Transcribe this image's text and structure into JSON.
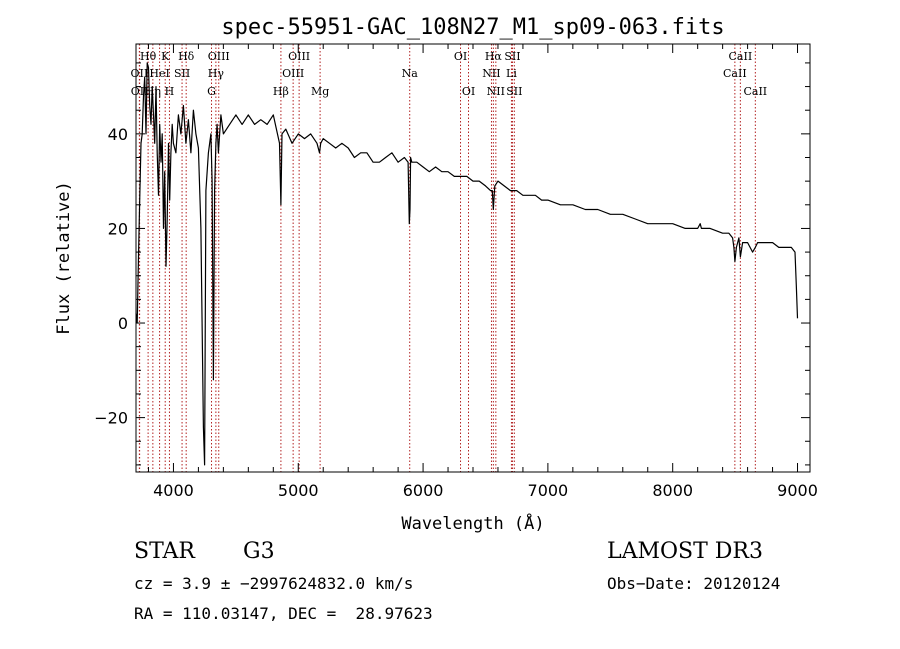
{
  "chart_data": {
    "type": "line",
    "title": "spec-55951-GAC_108N27_M1_sp09-063.fits",
    "xlabel": "Wavelength (Å)",
    "ylabel": "Flux (relative)",
    "xlim": [
      3700,
      9100
    ],
    "ylim": [
      -31.5,
      59
    ],
    "x_ticks": [
      4000,
      5000,
      6000,
      7000,
      8000,
      9000
    ],
    "y_ticks": [
      -20,
      0,
      20,
      40
    ],
    "x_tick_labels": [
      "4000",
      "5000",
      "6000",
      "7000",
      "8000",
      "9000"
    ],
    "y_tick_labels": [
      "−20",
      "0",
      "20",
      "40"
    ],
    "series": [
      {
        "name": "spectrum",
        "x": [
          3700,
          3710,
          3720,
          3730,
          3740,
          3750,
          3760,
          3770,
          3780,
          3790,
          3800,
          3810,
          3820,
          3830,
          3840,
          3850,
          3860,
          3870,
          3880,
          3890,
          3900,
          3910,
          3920,
          3930,
          3940,
          3950,
          3960,
          3970,
          3980,
          3990,
          4000,
          4020,
          4040,
          4060,
          4080,
          4100,
          4120,
          4140,
          4160,
          4180,
          4200,
          4220,
          4240,
          4250,
          4260,
          4280,
          4300,
          4310,
          4320,
          4330,
          4340,
          4350,
          4360,
          4380,
          4400,
          4450,
          4500,
          4550,
          4600,
          4650,
          4700,
          4750,
          4800,
          4850,
          4861,
          4870,
          4900,
          4950,
          5000,
          5050,
          5100,
          5150,
          5170,
          5180,
          5200,
          5250,
          5300,
          5350,
          5400,
          5450,
          5500,
          5550,
          5600,
          5650,
          5700,
          5750,
          5800,
          5850,
          5880,
          5890,
          5895,
          5900,
          5910,
          5950,
          6000,
          6050,
          6100,
          6150,
          6200,
          6250,
          6300,
          6350,
          6400,
          6450,
          6500,
          6540,
          6555,
          6563,
          6575,
          6600,
          6650,
          6700,
          6750,
          6800,
          6850,
          6900,
          6950,
          7000,
          7100,
          7200,
          7300,
          7400,
          7500,
          7600,
          7700,
          7800,
          7900,
          8000,
          8100,
          8200,
          8220,
          8230,
          8300,
          8400,
          8450,
          8480,
          8490,
          8498,
          8510,
          8530,
          8542,
          8560,
          8600,
          8640,
          8662,
          8680,
          8720,
          8760,
          8800,
          8850,
          8900,
          8950,
          8980,
          8990,
          9000
        ],
        "y": [
          2,
          0,
          14,
          26,
          38,
          40,
          48,
          52,
          40,
          55,
          54,
          46,
          42,
          50,
          44,
          38,
          50,
          36,
          27,
          42,
          34,
          40,
          20,
          32,
          12,
          22,
          38,
          26,
          36,
          42,
          38,
          36,
          44,
          40,
          46,
          38,
          43,
          36,
          45,
          40,
          37,
          20,
          -22,
          -30,
          28,
          36,
          40,
          30,
          -12,
          28,
          38,
          42,
          36,
          44,
          40,
          42,
          44,
          42,
          44,
          42,
          43,
          42,
          44,
          38,
          25,
          40,
          41,
          38,
          40,
          39,
          40,
          38,
          36,
          38,
          39,
          38,
          37,
          38,
          37,
          35,
          36,
          36,
          34,
          34,
          35,
          36,
          34,
          35,
          34,
          21,
          24,
          35,
          34,
          34,
          33,
          32,
          33,
          32,
          32,
          31,
          31,
          31,
          30,
          30,
          29,
          28,
          28,
          24,
          29,
          30,
          29,
          28,
          28,
          27,
          27,
          27,
          26,
          26,
          25,
          25,
          24,
          24,
          23,
          23,
          22,
          21,
          21,
          21,
          20,
          20,
          21,
          20,
          20,
          19,
          19,
          18,
          16,
          13,
          16,
          18,
          14,
          17,
          17,
          15,
          16,
          17,
          17,
          17,
          17,
          16,
          16,
          16,
          15,
          8,
          1
        ]
      }
    ],
    "lines": [
      {
        "name": "Hθ",
        "x": 3797,
        "row": 0
      },
      {
        "name": "OII",
        "x": 3727,
        "row": 1
      },
      {
        "name": "OII",
        "x": 3729,
        "row": 2
      },
      {
        "name": "Hη",
        "x": 3835,
        "row": 2
      },
      {
        "name": "HeI",
        "x": 3889,
        "row": 1
      },
      {
        "name": "K",
        "x": 3934,
        "row": 0
      },
      {
        "name": "H",
        "x": 3968,
        "row": 2
      },
      {
        "name": "SII",
        "x": 4069,
        "row": 1
      },
      {
        "name": "Hδ",
        "x": 4102,
        "row": 0
      },
      {
        "name": "Hγ",
        "x": 4340,
        "row": 1
      },
      {
        "name": "G",
        "x": 4305,
        "row": 2
      },
      {
        "name": "OIII",
        "x": 4363,
        "row": 0
      },
      {
        "name": "Hβ",
        "x": 4861,
        "row": 2
      },
      {
        "name": "OIII",
        "x": 4959,
        "row": 1
      },
      {
        "name": "OIII",
        "x": 5007,
        "row": 0
      },
      {
        "name": "Mg",
        "x": 5175,
        "row": 2
      },
      {
        "name": "Na",
        "x": 5893,
        "row": 1
      },
      {
        "name": "OI",
        "x": 6300,
        "row": 0
      },
      {
        "name": "OI",
        "x": 6364,
        "row": 2
      },
      {
        "name": "NII",
        "x": 6548,
        "row": 1
      },
      {
        "name": "Hα",
        "x": 6563,
        "row": 0
      },
      {
        "name": "NII",
        "x": 6583,
        "row": 2
      },
      {
        "name": "SII",
        "x": 6716,
        "row": 0
      },
      {
        "name": "Li",
        "x": 6708,
        "row": 1
      },
      {
        "name": "SII",
        "x": 6731,
        "row": 2
      },
      {
        "name": "CaII",
        "x": 8498,
        "row": 1
      },
      {
        "name": "CaII",
        "x": 8542,
        "row": 0
      },
      {
        "name": "CaII",
        "x": 8662,
        "row": 2
      }
    ]
  },
  "info": {
    "object_type": "STAR",
    "subclass": "G3",
    "survey": "LAMOST DR3",
    "redshift": "cz = 3.9 ± −2997624832.0 km/s",
    "obs_date": "Obs−Date: 20120124",
    "coords": "RA = 110.03147, DEC =  28.97623"
  }
}
